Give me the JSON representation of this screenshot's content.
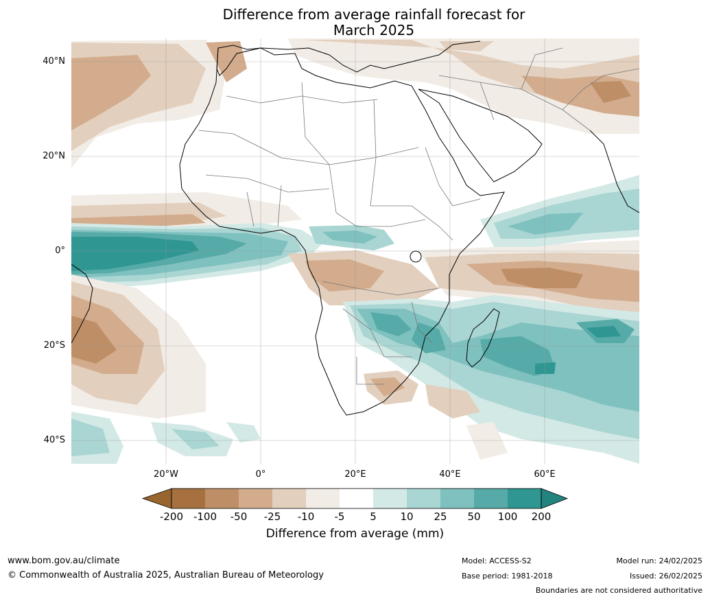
{
  "title_line1": "Difference from average rainfall forecast for",
  "title_line2": "March 2025",
  "lat_labels": [
    "40°N",
    "20°N",
    "0°",
    "20°S",
    "40°S"
  ],
  "lon_labels": [
    "20°W",
    "0°",
    "20°E",
    "40°E",
    "60°E"
  ],
  "colorbar": {
    "labels": [
      "-200",
      "-100",
      "-50",
      "-25",
      "-10",
      "-5",
      "5",
      "10",
      "25",
      "50",
      "100",
      "200"
    ],
    "colors": [
      "#a6713e",
      "#be8f66",
      "#d2ac8c",
      "#e2cfbd",
      "#f2ece6",
      "#ffffff",
      "#d3e9e6",
      "#a9d5d3",
      "#7ec1bf",
      "#56aaa7",
      "#2f9692"
    ],
    "end_colors": {
      "low": "#98652f",
      "high": "#23837e"
    },
    "title": "Difference from average (mm)"
  },
  "footer": {
    "website": "www.bom.gov.au/climate",
    "copyright": "© Commonwealth of Australia 2025, Australian Bureau of Meteorology",
    "model": "Model: ACCESS-S2",
    "base_period": "Base period: 1981-2018",
    "model_run": "Model run: 24/02/2025",
    "issued": "Issued: 26/02/2025",
    "disclaimer": "Boundaries are not considered authoritative"
  }
}
